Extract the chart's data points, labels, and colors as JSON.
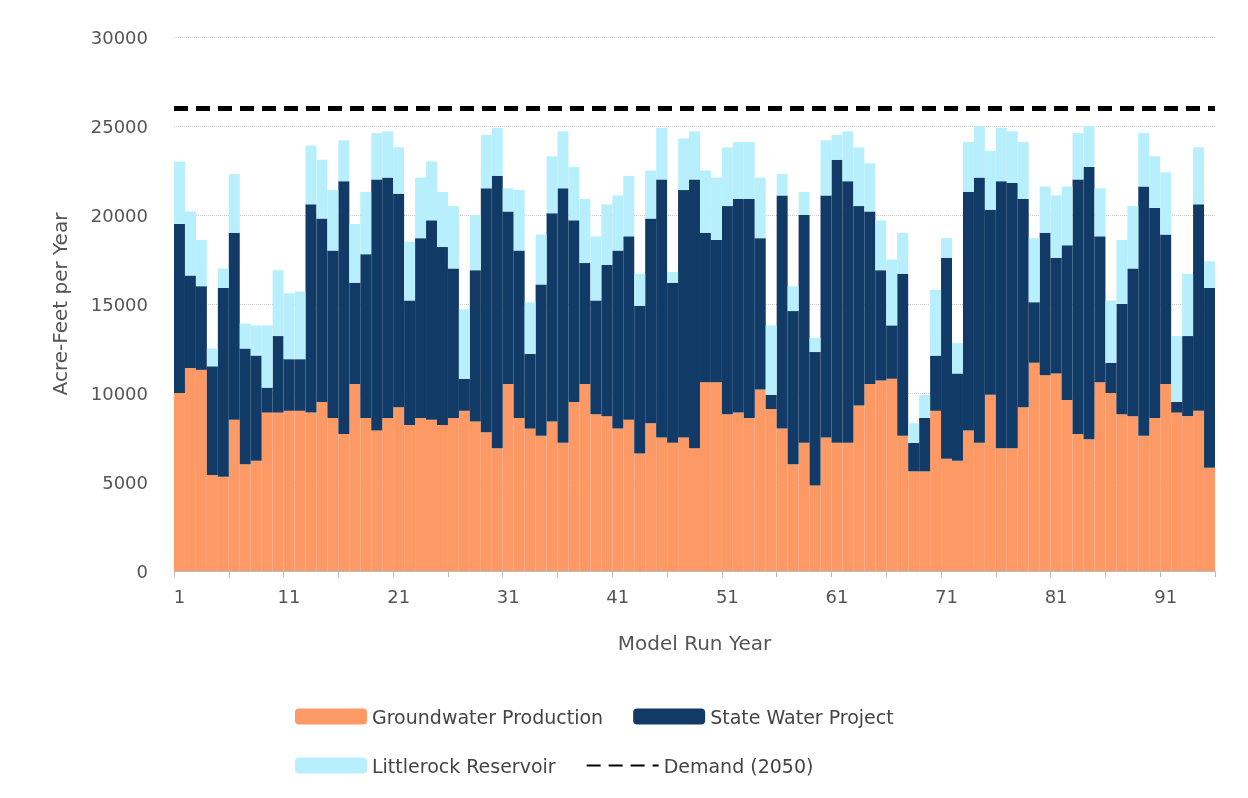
{
  "chart_data": {
    "type": "bar",
    "stacked": true,
    "xlabel": "Model Run Year",
    "ylabel": "Acre-Feet per Year",
    "categories": [
      "1",
      null,
      null,
      null,
      null,
      null,
      null,
      null,
      null,
      null,
      "11",
      null,
      null,
      null,
      null,
      null,
      null,
      null,
      null,
      null,
      "21",
      null,
      null,
      null,
      null,
      null,
      null,
      null,
      null,
      null,
      "31",
      null,
      null,
      null,
      null,
      null,
      null,
      null,
      null,
      null,
      "41",
      null,
      null,
      null,
      null,
      null,
      null,
      null,
      null,
      null,
      "51",
      null,
      null,
      null,
      null,
      null,
      null,
      null,
      null,
      null,
      "61",
      null,
      null,
      null,
      null,
      null,
      null,
      null,
      null,
      null,
      "71",
      null,
      null,
      null,
      null,
      null,
      null,
      null,
      null,
      null,
      "81",
      null,
      null,
      null,
      null,
      null,
      null,
      null,
      null,
      null,
      "91",
      null,
      null,
      null,
      null
    ],
    "series": [
      {
        "name": "Groundwater Production",
        "color": "#fd9965",
        "values": [
          10000,
          11400,
          11300,
          5400,
          5300,
          8500,
          6000,
          6200,
          8900,
          8900,
          9000,
          9000,
          8900,
          9500,
          8600,
          7700,
          10500,
          8600,
          7900,
          8600,
          9200,
          8200,
          8600,
          8500,
          8200,
          8600,
          9000,
          8400,
          7800,
          6900,
          10500,
          8600,
          8000,
          7600,
          8400,
          7200,
          9500,
          10500,
          8800,
          8700,
          8000,
          8500,
          6600,
          8300,
          7500,
          7200,
          7500,
          6900,
          10600,
          10600,
          8800,
          8900,
          8600,
          10200,
          9100,
          8000,
          6000,
          7200,
          4800,
          7500,
          7200,
          7200,
          9300,
          10500,
          10700,
          10800,
          7600,
          5600,
          5600,
          9000,
          6300,
          6200,
          7900,
          7200,
          9900,
          6900,
          6900,
          9200,
          11700,
          11000,
          11100,
          9600,
          7700,
          7400,
          10600,
          10000,
          8800,
          8700,
          7600,
          8600,
          10500,
          8900,
          8700,
          9000,
          5800
        ]
      },
      {
        "name": "State Water Project",
        "color": "#123a66",
        "values": [
          9500,
          5200,
          4700,
          6100,
          10600,
          10500,
          6500,
          5900,
          1400,
          4300,
          2900,
          2900,
          11700,
          10300,
          9400,
          14200,
          5700,
          9200,
          14100,
          13500,
          12000,
          7000,
          10100,
          11200,
          10000,
          8400,
          1800,
          8500,
          13700,
          15300,
          9700,
          9400,
          4200,
          8500,
          11700,
          14300,
          10200,
          6800,
          6400,
          8500,
          10000,
          10300,
          8300,
          11500,
          14500,
          9000,
          13900,
          15100,
          8400,
          8000,
          11700,
          12000,
          12300,
          8500,
          800,
          13100,
          8600,
          12800,
          7500,
          13600,
          15900,
          14700,
          11200,
          9700,
          6200,
          3000,
          9100,
          1600,
          3000,
          3100,
          11300,
          4900,
          13400,
          14900,
          10400,
          15000,
          14900,
          11700,
          3400,
          8000,
          6500,
          8700,
          14300,
          15300,
          8200,
          1700,
          6200,
          8300,
          14000,
          11800,
          8400,
          600,
          4500,
          11600,
          10100
        ]
      },
      {
        "name": "Littlerock Reservoir",
        "color": "#b7effc",
        "values": [
          3500,
          3600,
          2600,
          1000,
          1100,
          3300,
          1400,
          1700,
          3500,
          3700,
          3700,
          3800,
          3300,
          3300,
          3400,
          2300,
          3300,
          3500,
          2600,
          2600,
          2600,
          3300,
          3400,
          3300,
          3100,
          3500,
          3900,
          3100,
          3000,
          2700,
          1300,
          3400,
          2900,
          2800,
          3200,
          3200,
          3000,
          3600,
          3600,
          3400,
          3100,
          3400,
          1800,
          2700,
          2900,
          600,
          2900,
          2700,
          3500,
          3500,
          3300,
          3200,
          3200,
          3400,
          3900,
          1200,
          1400,
          1300,
          800,
          3100,
          1400,
          2800,
          3300,
          2700,
          2800,
          3700,
          2300,
          1100,
          1300,
          3700,
          1100,
          1700,
          2800,
          2900,
          3300,
          3000,
          2900,
          3200,
          3600,
          2600,
          3500,
          3300,
          2600,
          2300,
          2700,
          3500,
          3600,
          3500,
          3000,
          2900,
          3500,
          3700,
          3500,
          3200,
          1500
        ]
      }
    ],
    "ref_lines": [
      {
        "axis": "y",
        "value": 26000,
        "label": "Demand (2050)",
        "color": "#000000",
        "line_style": "dashed"
      }
    ],
    "ylim": [
      0,
      30000
    ],
    "yticks": [
      0,
      5000,
      10000,
      15000,
      20000,
      25000,
      30000
    ],
    "grid": "y",
    "legend": "bottom"
  }
}
